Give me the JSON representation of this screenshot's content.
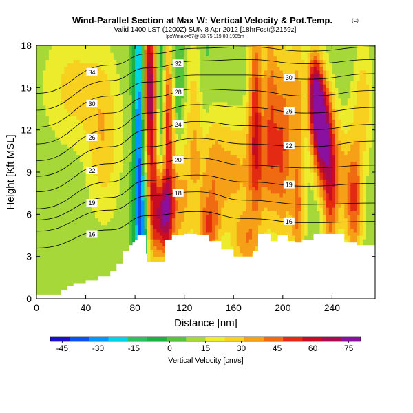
{
  "chart_data": {
    "type": "heatmap",
    "title": "Wind-Parallel Section at Max W: Vertical Velocity & Pot.Temp.",
    "title_mark": "(C)",
    "subtitle": "Valid 1400 LST (1200Z) SUN 8 Apr 2012 [18hrFcst@2159z]",
    "subtitle2": "lpxWmax=57@ 33.75,119.08 1905m",
    "xlabel": "Distance [nm]",
    "ylabel": "Height [Kft MSL]",
    "xlim": [
      0,
      275
    ],
    "ylim": [
      0,
      18
    ],
    "x_ticks": [
      "0",
      "40",
      "80",
      "120",
      "160",
      "200",
      "240"
    ],
    "x_tick_values": [
      0,
      40,
      80,
      120,
      160,
      200,
      240
    ],
    "y_ticks": [
      "0",
      "3",
      "6",
      "9",
      "12",
      "15",
      "18"
    ],
    "y_tick_values": [
      0,
      3,
      6,
      9,
      12,
      15,
      18
    ],
    "colorbar": {
      "label": "Vertical Velocity [cm/s]",
      "min": -50,
      "max": 80,
      "ticks": [
        "-45",
        "-30",
        "-15",
        "0",
        "15",
        "30",
        "45",
        "60",
        "75"
      ],
      "tick_values": [
        -45,
        -30,
        -15,
        0,
        15,
        30,
        45,
        60,
        75
      ],
      "colors": [
        "#1a10c8",
        "#0a52f0",
        "#0096ff",
        "#00d2e6",
        "#2fbf5e",
        "#1fb13f",
        "#56c43b",
        "#a5d838",
        "#ecec2c",
        "#f7d020",
        "#f5a016",
        "#ef6a10",
        "#e32a12",
        "#c80c24",
        "#a80c50",
        "#8a10a0"
      ]
    },
    "background_w": 8,
    "features": [
      {
        "x": 83,
        "z": 12,
        "sx": 3,
        "sz": 9,
        "w": -42
      },
      {
        "x": 86,
        "z": 5,
        "sx": 3,
        "sz": 3,
        "w": -25
      },
      {
        "x": 90,
        "z": 16,
        "sx": 3,
        "sz": 3,
        "w": 28
      },
      {
        "x": 94,
        "z": 13,
        "sx": 4,
        "sz": 6,
        "w": 50
      },
      {
        "x": 101,
        "z": 14,
        "sx": 3,
        "sz": 6,
        "w": -32
      },
      {
        "x": 107,
        "z": 13,
        "sx": 4,
        "sz": 4,
        "w": 50
      },
      {
        "x": 113,
        "z": 15,
        "sx": 4,
        "sz": 3,
        "w": -18
      },
      {
        "x": 103,
        "z": 6,
        "sx": 6,
        "sz": 2.2,
        "w": 68
      },
      {
        "x": 118,
        "z": 7,
        "sx": 5,
        "sz": 3,
        "w": 22
      },
      {
        "x": 128,
        "z": 12,
        "sx": 5,
        "sz": 5,
        "w": 20
      },
      {
        "x": 136,
        "z": 14,
        "sx": 4,
        "sz": 4,
        "w": -5
      },
      {
        "x": 142,
        "z": 9,
        "sx": 8,
        "sz": 3,
        "w": 25
      },
      {
        "x": 160,
        "z": 9,
        "sx": 10,
        "sz": 3,
        "w": 22
      },
      {
        "x": 178,
        "z": 14,
        "sx": 4,
        "sz": 5,
        "w": 40
      },
      {
        "x": 190,
        "z": 14,
        "sx": 4,
        "sz": 5,
        "w": 30
      },
      {
        "x": 183,
        "z": 9,
        "sx": 10,
        "sz": 3,
        "w": 20
      },
      {
        "x": 200,
        "z": 11,
        "sx": 5,
        "sz": 5,
        "w": 35
      },
      {
        "x": 212,
        "z": 14,
        "sx": 5,
        "sz": 4,
        "w": 25
      },
      {
        "x": 231,
        "z": 12,
        "sx": 5,
        "sz": 2.5,
        "w": 75
      },
      {
        "x": 226,
        "z": 15,
        "sx": 4,
        "sz": 2,
        "w": 50
      },
      {
        "x": 238,
        "z": 8,
        "sx": 4,
        "sz": 4,
        "w": 35
      },
      {
        "x": 258,
        "z": 7,
        "sx": 5,
        "sz": 3,
        "w": 40
      },
      {
        "x": 212,
        "z": 6,
        "sx": 4,
        "sz": 3,
        "w": 30
      },
      {
        "x": 245,
        "z": 9,
        "sx": 6,
        "sz": 3,
        "w": 25
      },
      {
        "x": 30,
        "z": 15,
        "sx": 18,
        "sz": 3,
        "w": 18
      },
      {
        "x": 55,
        "z": 11,
        "sx": 10,
        "sz": 4,
        "w": 20
      },
      {
        "x": 170,
        "z": 4,
        "sx": 8,
        "sz": 1.5,
        "w": 25
      },
      {
        "x": 140,
        "z": 5,
        "sx": 6,
        "sz": 1.5,
        "w": 30
      },
      {
        "x": 265,
        "z": 14,
        "sx": 6,
        "sz": 3,
        "w": 20
      }
    ],
    "terrain": [
      [
        0,
        0.3
      ],
      [
        5,
        0.3
      ],
      [
        10,
        0.3
      ],
      [
        15,
        0.3
      ],
      [
        20,
        0.6
      ],
      [
        25,
        0.9
      ],
      [
        30,
        1.1
      ],
      [
        40,
        1.3
      ],
      [
        50,
        1.6
      ],
      [
        60,
        2.0
      ],
      [
        65,
        2.5
      ],
      [
        70,
        3.4
      ],
      [
        75,
        3.8
      ],
      [
        78,
        4.0
      ],
      [
        80,
        4.2
      ],
      [
        82,
        4.5
      ],
      [
        86,
        4.5
      ],
      [
        89,
        3.2
      ],
      [
        90,
        2.6
      ],
      [
        94,
        2.6
      ],
      [
        100,
        2.6
      ],
      [
        104,
        4.2
      ],
      [
        110,
        4.5
      ],
      [
        120,
        4.6
      ],
      [
        130,
        4.5
      ],
      [
        140,
        4.1
      ],
      [
        150,
        3.5
      ],
      [
        160,
        3.0
      ],
      [
        170,
        3.0
      ],
      [
        176,
        3.4
      ],
      [
        180,
        4.6
      ],
      [
        186,
        4.6
      ],
      [
        190,
        4.1
      ],
      [
        196,
        4.5
      ],
      [
        200,
        4.5
      ],
      [
        204,
        4.1
      ],
      [
        210,
        4.0
      ],
      [
        216,
        4.2
      ],
      [
        225,
        4.6
      ],
      [
        240,
        4.6
      ],
      [
        250,
        4.0
      ],
      [
        260,
        3.8
      ],
      [
        270,
        3.8
      ],
      [
        275,
        3.8
      ]
    ],
    "isentropes": [
      {
        "theta": "16",
        "pts": [
          [
            0,
            3.6
          ],
          [
            60,
            4.9
          ],
          [
            90,
            5.9
          ],
          [
            130,
            6.2
          ],
          [
            170,
            5.7
          ],
          [
            220,
            5.4
          ],
          [
            275,
            5.5
          ]
        ]
      },
      {
        "theta": "18",
        "pts": [
          [
            0,
            4.8
          ],
          [
            60,
            6.3
          ],
          [
            90,
            7.3
          ],
          [
            130,
            7.6
          ],
          [
            170,
            7.0
          ],
          [
            220,
            6.7
          ],
          [
            275,
            6.8
          ]
        ]
      },
      {
        "theta": "19",
        "pts": [
          [
            0,
            5.6
          ],
          [
            60,
            7.2
          ],
          [
            90,
            8.4
          ],
          [
            130,
            8.8
          ],
          [
            170,
            8.3
          ],
          [
            220,
            8.0
          ],
          [
            275,
            8.2
          ]
        ]
      },
      {
        "theta": "20",
        "pts": [
          [
            0,
            6.4
          ],
          [
            60,
            8.3
          ],
          [
            90,
            9.6
          ],
          [
            130,
            10.0
          ],
          [
            170,
            9.5
          ],
          [
            220,
            9.3
          ],
          [
            275,
            9.5
          ]
        ]
      },
      {
        "theta": "22",
        "pts": [
          [
            0,
            7.6
          ],
          [
            60,
            9.6
          ],
          [
            90,
            10.8
          ],
          [
            130,
            11.4
          ],
          [
            170,
            11.0
          ],
          [
            220,
            10.8
          ],
          [
            275,
            11.2
          ]
        ]
      },
      {
        "theta": "24",
        "pts": [
          [
            0,
            8.7
          ],
          [
            60,
            10.8
          ],
          [
            90,
            12.0
          ],
          [
            130,
            12.6
          ],
          [
            170,
            12.3
          ],
          [
            220,
            12.0
          ],
          [
            275,
            12.4
          ]
        ]
      },
      {
        "theta": "26",
        "pts": [
          [
            0,
            9.8
          ],
          [
            60,
            12.0
          ],
          [
            90,
            13.2
          ],
          [
            130,
            13.8
          ],
          [
            170,
            13.6
          ],
          [
            220,
            13.2
          ],
          [
            275,
            13.6
          ]
        ]
      },
      {
        "theta": "28",
        "pts": [
          [
            0,
            11.0
          ],
          [
            60,
            13.2
          ],
          [
            90,
            14.3
          ],
          [
            130,
            14.9
          ],
          [
            170,
            14.8
          ],
          [
            220,
            14.4
          ],
          [
            275,
            14.8
          ]
        ]
      },
      {
        "theta": "30",
        "pts": [
          [
            0,
            12.2
          ],
          [
            60,
            14.4
          ],
          [
            90,
            15.4
          ],
          [
            130,
            15.9
          ],
          [
            170,
            15.9
          ],
          [
            220,
            15.6
          ],
          [
            275,
            16.0
          ]
        ]
      },
      {
        "theta": "32",
        "pts": [
          [
            0,
            13.4
          ],
          [
            60,
            15.5
          ],
          [
            90,
            16.4
          ],
          [
            130,
            16.9
          ],
          [
            170,
            17.0
          ],
          [
            220,
            16.7
          ],
          [
            275,
            17.0
          ]
        ]
      },
      {
        "theta": "34",
        "pts": [
          [
            0,
            14.6
          ],
          [
            60,
            16.6
          ],
          [
            90,
            17.4
          ],
          [
            130,
            17.8
          ],
          [
            170,
            17.9
          ],
          [
            220,
            17.6
          ],
          [
            275,
            17.9
          ]
        ]
      }
    ]
  }
}
